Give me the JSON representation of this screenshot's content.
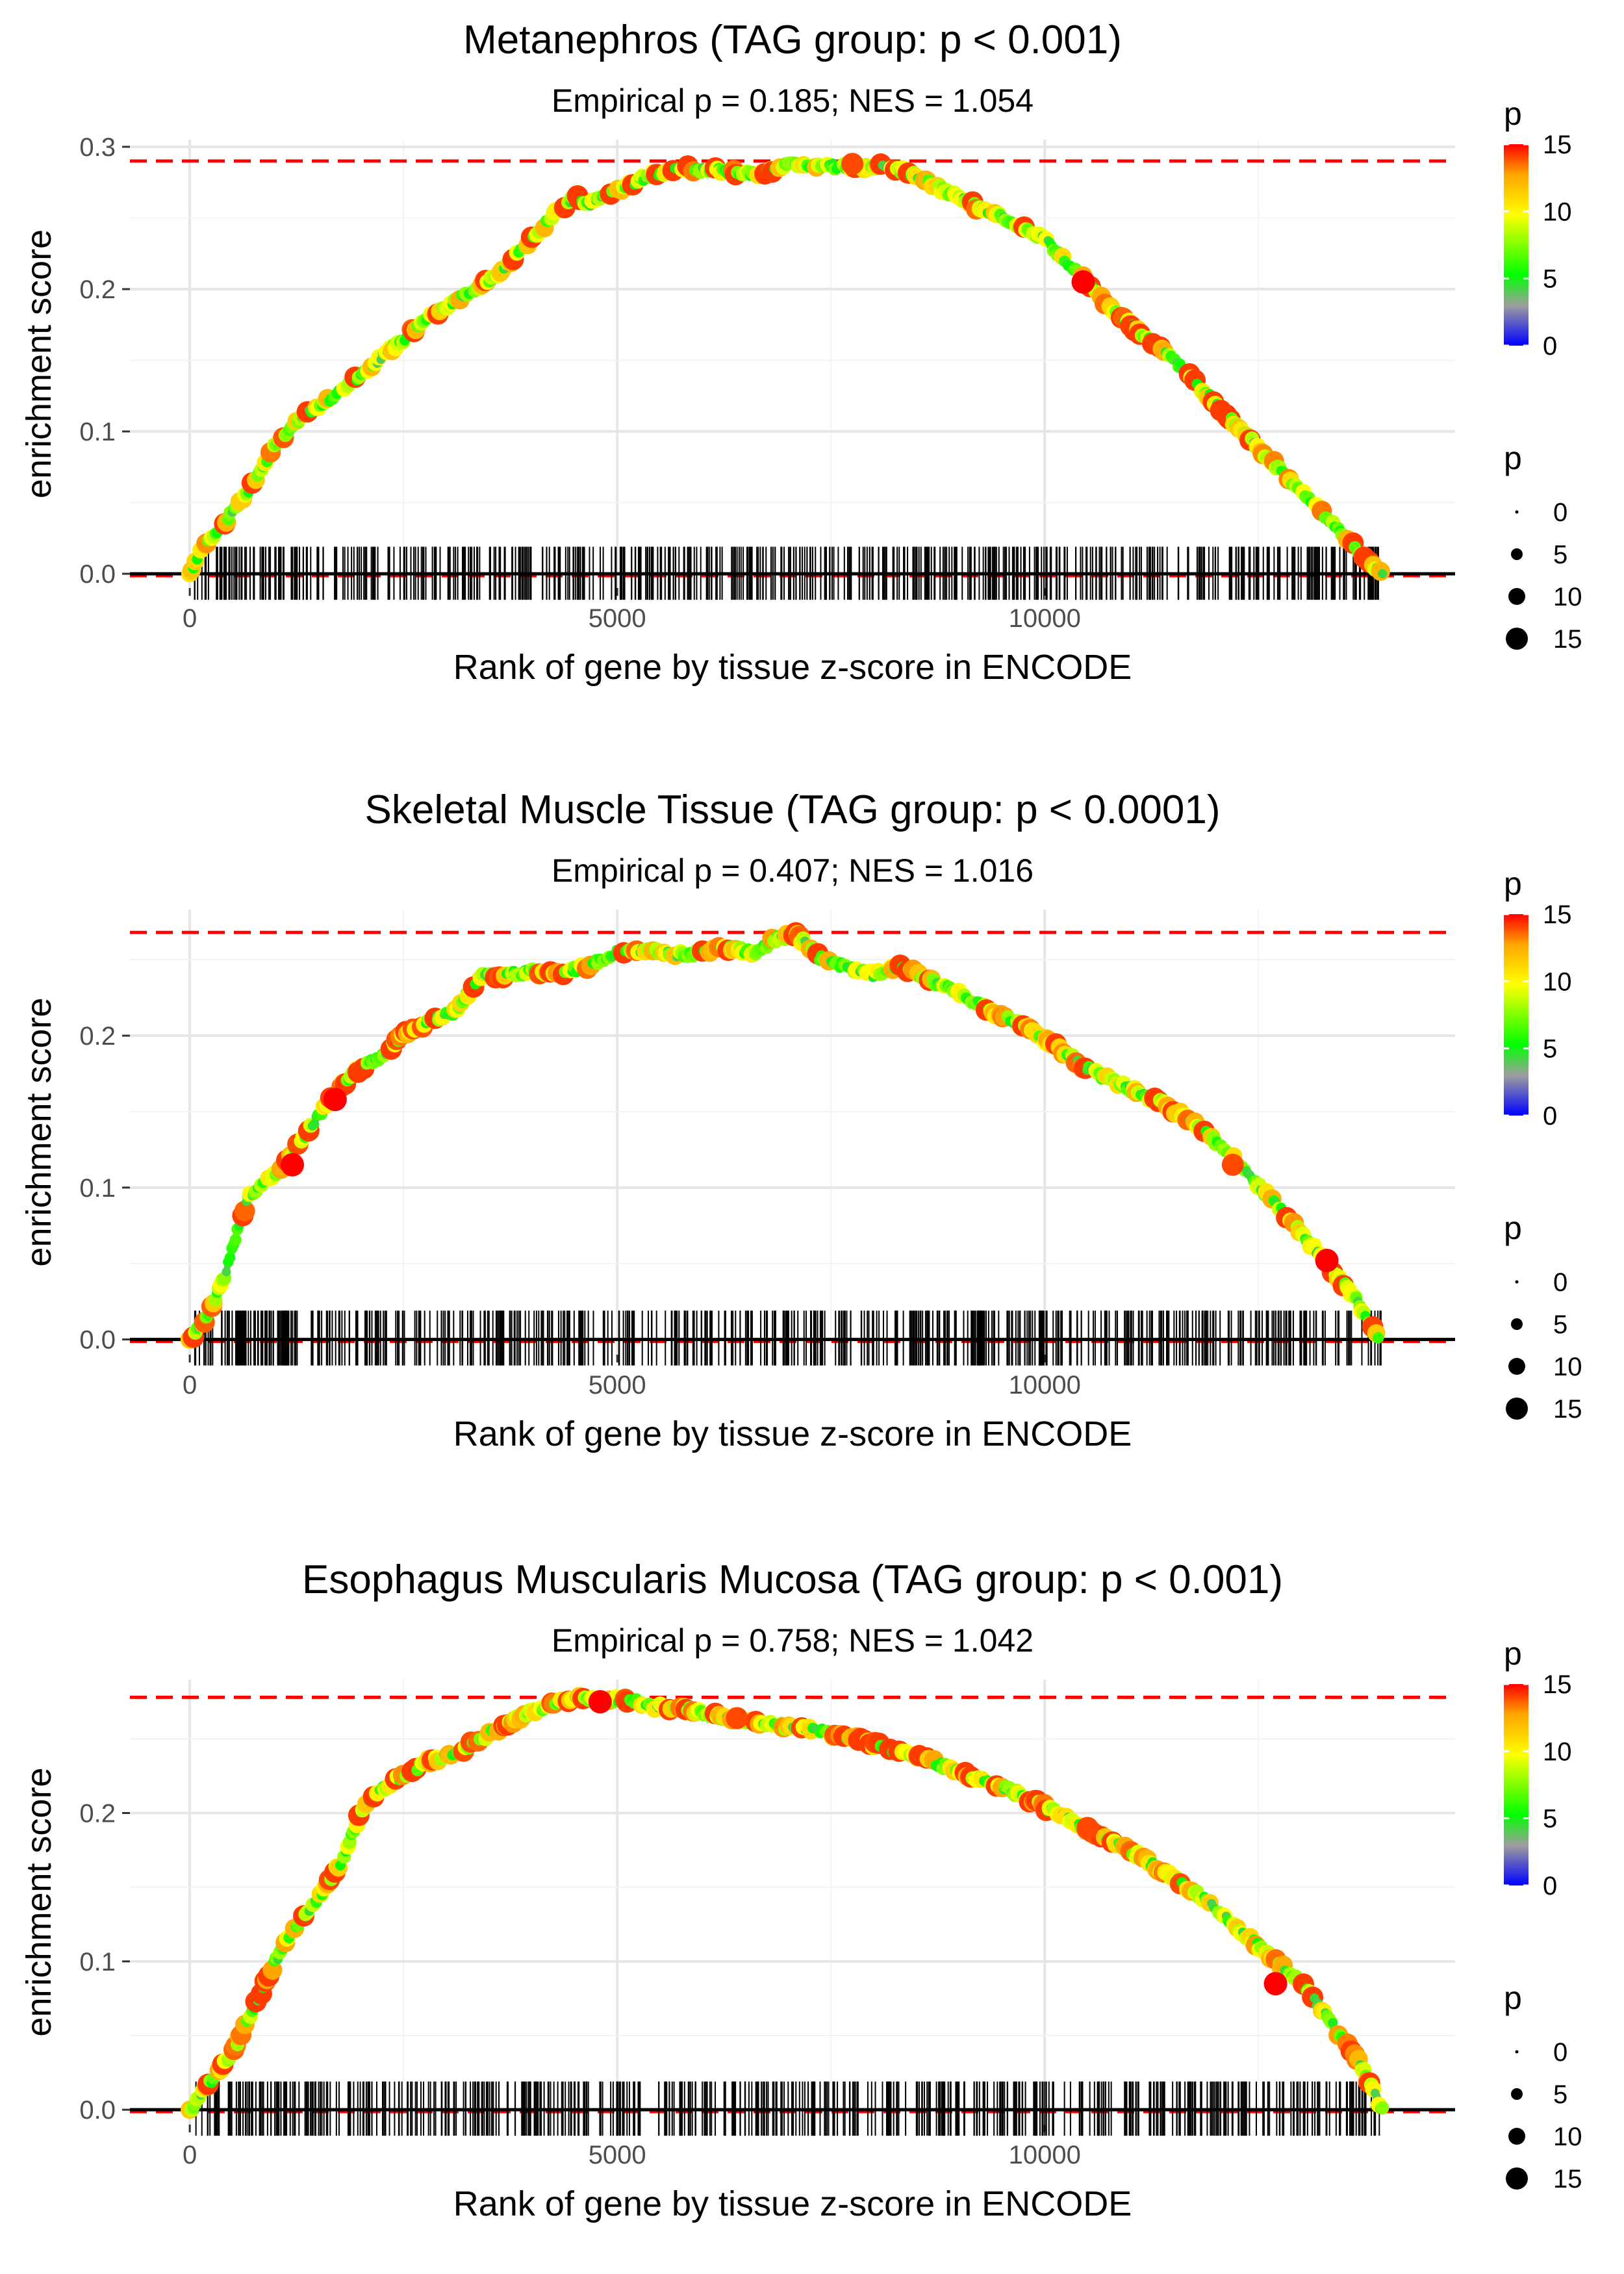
{
  "chart_data": [
    {
      "type": "line",
      "title": "Metanephros (TAG group: p < 0.001)",
      "subtitle": "Empirical p = 0.185; NES = 1.054",
      "xlabel": "Rank of gene by tissue z-score in ENCODE",
      "ylabel": "enrichment score",
      "xlim": [
        -700,
        14800
      ],
      "ylim": [
        -0.01,
        0.305
      ],
      "x_ticks": [
        0,
        5000,
        10000
      ],
      "x_tick_labels": [
        "0",
        "5000",
        "10000"
      ],
      "y_ticks": [
        0,
        0.1,
        0.2,
        0.3
      ],
      "y_tick_labels": [
        "0.0",
        "0.1",
        "0.2",
        "0.3"
      ],
      "max_es_line": 0.29,
      "curve": {
        "x": [
          0,
          150,
          400,
          700,
          1000,
          1300,
          1700,
          2000,
          2400,
          2800,
          3200,
          3600,
          4000,
          4300,
          4500,
          4700,
          5000,
          5400,
          5800,
          6200,
          6600,
          7000,
          7400,
          7800,
          8100,
          8400,
          8800,
          9200,
          9600,
          10000,
          10400,
          10800,
          11200,
          11600,
          12000,
          12400,
          12800,
          13200,
          13600,
          13950
        ],
        "y": [
          0,
          0.02,
          0.035,
          0.06,
          0.09,
          0.11,
          0.125,
          0.14,
          0.16,
          0.18,
          0.195,
          0.21,
          0.235,
          0.255,
          0.265,
          0.26,
          0.27,
          0.28,
          0.285,
          0.283,
          0.28,
          0.288,
          0.287,
          0.285,
          0.287,
          0.282,
          0.27,
          0.258,
          0.248,
          0.235,
          0.21,
          0.185,
          0.165,
          0.145,
          0.12,
          0.095,
          0.07,
          0.045,
          0.02,
          0
        ]
      },
      "rug": {
        "start": 50,
        "end": 13950,
        "count": 560,
        "seed": 11
      },
      "highlight_points": [
        {
          "x": 10450,
          "y": 0.205,
          "p": 15
        },
        {
          "x": 7750,
          "y": 0.288,
          "p": 14
        }
      ],
      "seed": 3,
      "colorbar": {
        "title": "p",
        "min": 0,
        "max": 15,
        "ticks": [
          "15",
          "10",
          "5",
          "0"
        ]
      },
      "size_legend": {
        "title": "p",
        "labels": [
          "0",
          "5",
          "10",
          "15"
        ]
      }
    },
    {
      "type": "line",
      "title": "Skeletal Muscle Tissue (TAG group: p < 0.0001)",
      "subtitle": "Empirical p = 0.407; NES = 1.016",
      "xlabel": "Rank of gene by tissue z-score in ENCODE",
      "ylabel": "enrichment score",
      "xlim": [
        -700,
        14800
      ],
      "ylim": [
        -0.01,
        0.283
      ],
      "x_ticks": [
        0,
        5000,
        10000
      ],
      "x_tick_labels": [
        "0",
        "5000",
        "10000"
      ],
      "y_ticks": [
        0,
        0.1,
        0.2
      ],
      "y_tick_labels": [
        "0.0",
        "0.1",
        "0.2"
      ],
      "max_es_line": 0.268,
      "curve": {
        "x": [
          0,
          200,
          400,
          550,
          700,
          900,
          1100,
          1300,
          1600,
          1900,
          2200,
          2500,
          2800,
          3100,
          3400,
          3700,
          4000,
          4300,
          4700,
          5000,
          5400,
          5800,
          6200,
          6600,
          6900,
          7100,
          7400,
          7700,
          8000,
          8300,
          8600,
          9000,
          9400,
          9800,
          10200,
          10600,
          11000,
          11400,
          11800,
          12200,
          12600,
          13000,
          13300,
          13600,
          13900
        ],
        "y": [
          0,
          0.015,
          0.04,
          0.07,
          0.095,
          0.105,
          0.115,
          0.13,
          0.155,
          0.175,
          0.185,
          0.2,
          0.21,
          0.215,
          0.24,
          0.24,
          0.242,
          0.24,
          0.247,
          0.255,
          0.256,
          0.253,
          0.258,
          0.255,
          0.265,
          0.266,
          0.25,
          0.245,
          0.24,
          0.246,
          0.238,
          0.228,
          0.215,
          0.205,
          0.19,
          0.175,
          0.165,
          0.155,
          0.14,
          0.12,
          0.095,
          0.07,
          0.05,
          0.03,
          0
        ]
      },
      "rug": {
        "start": 50,
        "end": 13950,
        "count": 560,
        "seed": 23
      },
      "highlight_points": [
        {
          "x": 1200,
          "y": 0.115,
          "p": 15
        },
        {
          "x": 1700,
          "y": 0.158,
          "p": 15
        },
        {
          "x": 13300,
          "y": 0.052,
          "p": 15
        },
        {
          "x": 12200,
          "y": 0.115,
          "p": 14
        }
      ],
      "seed": 7,
      "colorbar": {
        "title": "p",
        "min": 0,
        "max": 15,
        "ticks": [
          "15",
          "10",
          "5",
          "0"
        ]
      },
      "size_legend": {
        "title": "p",
        "labels": [
          "0",
          "5",
          "10",
          "15"
        ]
      }
    },
    {
      "type": "line",
      "title": "Esophagus Muscularis Mucosa (TAG group: p < 0.001)",
      "subtitle": "Empirical p = 0.758; NES = 1.042",
      "xlabel": "Rank of gene by tissue z-score in ENCODE",
      "ylabel": "enrichment score",
      "xlim": [
        -700,
        14800
      ],
      "ylim": [
        -0.01,
        0.29
      ],
      "x_ticks": [
        0,
        5000,
        10000
      ],
      "x_tick_labels": [
        "0",
        "5000",
        "10000"
      ],
      "y_ticks": [
        0,
        0.1,
        0.2
      ],
      "y_tick_labels": [
        "0.0",
        "0.1",
        "0.2"
      ],
      "max_es_line": 0.278,
      "curve": {
        "x": [
          0,
          200,
          400,
          600,
          800,
          1000,
          1200,
          1400,
          1600,
          1800,
          2000,
          2200,
          2500,
          2800,
          3100,
          3400,
          3700,
          4000,
          4300,
          4500,
          4800,
          5100,
          5400,
          5800,
          6200,
          6600,
          7000,
          7400,
          7800,
          8200,
          8600,
          9000,
          9400,
          9800,
          10200,
          10600,
          11000,
          11400,
          11800,
          12200,
          12600,
          13000,
          13400,
          13700,
          13950
        ],
        "y": [
          0,
          0.015,
          0.03,
          0.05,
          0.075,
          0.1,
          0.12,
          0.135,
          0.15,
          0.17,
          0.2,
          0.215,
          0.225,
          0.235,
          0.24,
          0.25,
          0.26,
          0.268,
          0.275,
          0.278,
          0.275,
          0.277,
          0.272,
          0.27,
          0.265,
          0.262,
          0.258,
          0.255,
          0.25,
          0.243,
          0.236,
          0.228,
          0.22,
          0.21,
          0.198,
          0.185,
          0.175,
          0.16,
          0.145,
          0.125,
          0.105,
          0.085,
          0.055,
          0.03,
          0
        ]
      },
      "rug": {
        "start": 50,
        "end": 13950,
        "count": 560,
        "seed": 37
      },
      "highlight_points": [
        {
          "x": 4800,
          "y": 0.275,
          "p": 15
        },
        {
          "x": 6400,
          "y": 0.264,
          "p": 14
        },
        {
          "x": 12700,
          "y": 0.085,
          "p": 15
        },
        {
          "x": 10500,
          "y": 0.19,
          "p": 14
        }
      ],
      "seed": 13,
      "colorbar": {
        "title": "p",
        "min": 0,
        "max": 15,
        "ticks": [
          "15",
          "10",
          "5",
          "0"
        ]
      },
      "size_legend": {
        "title": "p",
        "labels": [
          "0",
          "5",
          "10",
          "15"
        ]
      }
    }
  ]
}
